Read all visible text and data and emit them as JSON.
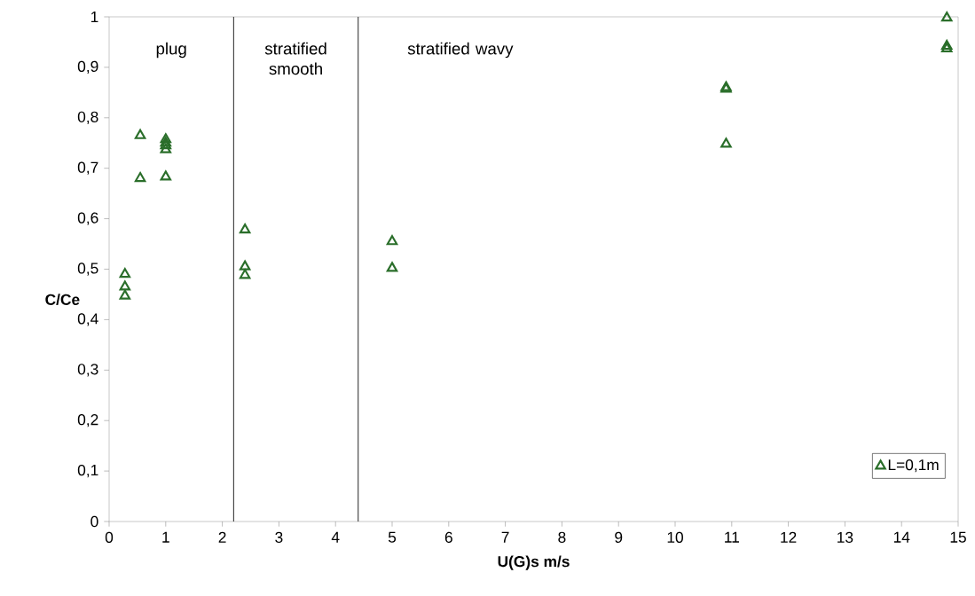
{
  "chart_data": {
    "type": "scatter",
    "xlabel": "U(G)s m/s",
    "ylabel": "C/Ce",
    "x": [
      0.28,
      0.28,
      0.28,
      0.55,
      0.55,
      1.0,
      1.0,
      1.0,
      1.0,
      1.0,
      2.4,
      2.4,
      2.4,
      5.0,
      5.0,
      10.9,
      10.9,
      10.9,
      14.8,
      14.8,
      14.8
    ],
    "series": [
      {
        "name": "L=0,1m",
        "color": "#2a6e2a",
        "values": [
          0.49,
          0.465,
          0.447,
          0.765,
          0.68,
          0.757,
          0.75,
          0.745,
          0.737,
          0.683,
          0.578,
          0.505,
          0.488,
          0.555,
          0.502,
          0.86,
          0.857,
          0.748,
          0.998,
          0.942,
          0.937
        ]
      }
    ],
    "xlim": [
      0,
      15
    ],
    "ylim": [
      0,
      1
    ],
    "xticks": [
      0,
      1,
      2,
      3,
      4,
      5,
      6,
      7,
      8,
      9,
      10,
      11,
      12,
      13,
      14,
      15
    ],
    "yticks": [
      0,
      {
        "value": 0.1,
        "label": "0,1"
      },
      {
        "value": 0.2,
        "label": "0,2"
      },
      {
        "value": 0.3,
        "label": "0,3"
      },
      {
        "value": 0.4,
        "label": "0,4"
      },
      {
        "value": 0.5,
        "label": "0,5"
      },
      {
        "value": 0.6,
        "label": "0,6"
      },
      {
        "value": 0.7,
        "label": "0,7"
      },
      {
        "value": 0.8,
        "label": "0,8"
      },
      {
        "value": 0.9,
        "label": "0,9"
      },
      1
    ],
    "ref_lines": [
      {
        "axis": "x",
        "value": 2.2,
        "color": "#333333"
      },
      {
        "axis": "x",
        "value": 4.4,
        "color": "#333333"
      }
    ],
    "annotations": [
      "plug",
      "stratified smooth",
      "stratified wavy"
    ],
    "grid": false,
    "legend": "bottom right",
    "marker": "triangle"
  }
}
